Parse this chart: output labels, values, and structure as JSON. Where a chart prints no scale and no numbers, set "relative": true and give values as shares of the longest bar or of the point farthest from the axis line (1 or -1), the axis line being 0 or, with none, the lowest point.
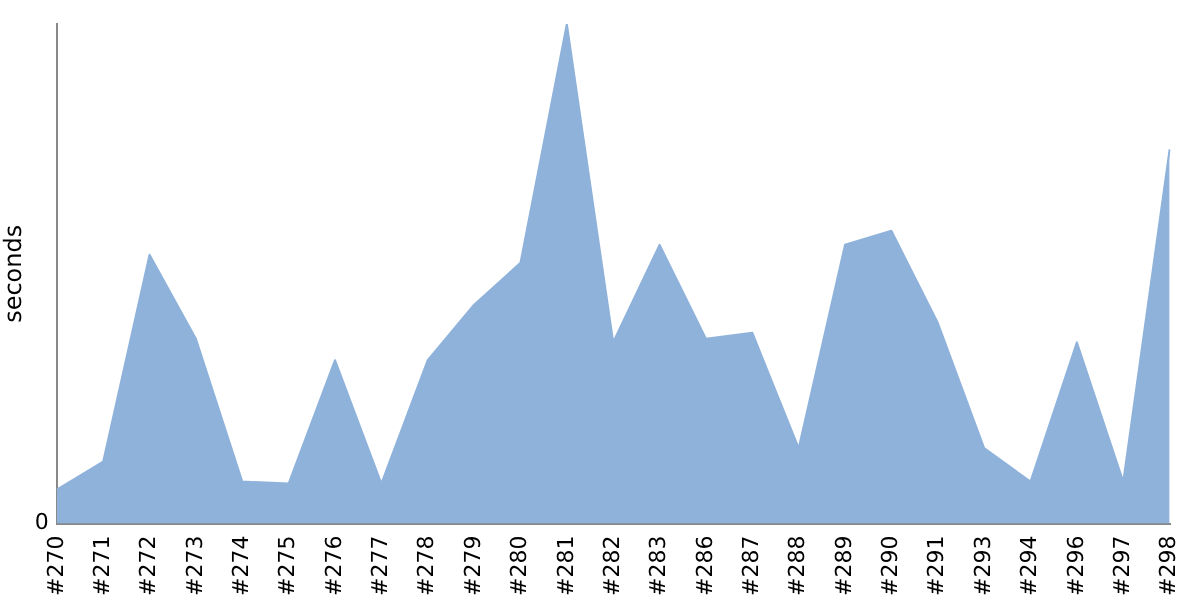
{
  "chart_data": {
    "type": "area",
    "ylabel": "seconds",
    "relative": true,
    "annotations": [
      "0"
    ],
    "grid": false,
    "legend": false,
    "marker": "none",
    "categories": [
      "#270",
      "#271",
      "#272",
      "#273",
      "#274",
      "#275",
      "#276",
      "#277",
      "#278",
      "#279",
      "#280",
      "#281",
      "#282",
      "#283",
      "#286",
      "#287",
      "#288",
      "#289",
      "#290",
      "#291",
      "#293",
      "#294",
      "#296",
      "#297",
      "#298"
    ],
    "series": [
      {
        "color": "#8fb2db",
        "values": [
          0.068,
          0.124,
          0.538,
          0.37,
          0.084,
          0.08,
          0.327,
          0.08,
          0.327,
          0.438,
          0.522,
          1,
          0.363,
          0.558,
          0.37,
          0.382,
          0.151,
          0.558,
          0.586,
          0.402,
          0.151,
          0.084,
          0.363,
          0.084,
          0.749
        ]
      }
    ]
  }
}
